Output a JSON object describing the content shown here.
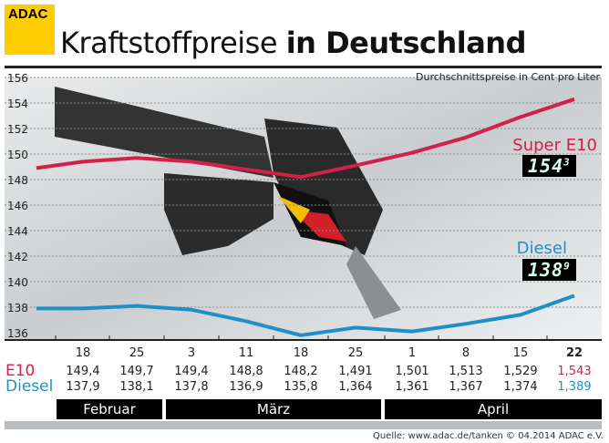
{
  "logo": "ADAC",
  "title": {
    "light": "Kraftstoffpreise",
    "bold": "in Deutschland"
  },
  "subtitle": "Durchschnittspreise in Cent pro Liter",
  "colors": {
    "e10": "#d2204a",
    "diesel": "#1e90c8",
    "logo": "#ffcc00"
  },
  "labels": {
    "e10": "Super E10",
    "diesel": "Diesel",
    "e10_display_main": "154",
    "e10_display_sup": "3",
    "diesel_display_main": "138",
    "diesel_display_sup": "9"
  },
  "table": {
    "dates": [
      "18",
      "25",
      "3",
      "11",
      "18",
      "25",
      "1",
      "8",
      "15",
      "22"
    ],
    "e10_label": "E10",
    "diesel_label": "Diesel",
    "e10": [
      "149,4",
      "149,7",
      "149,4",
      "148,8",
      "148,2",
      "1,491",
      "1,501",
      "1,513",
      "1,529",
      "1,543"
    ],
    "diesel": [
      "137,9",
      "138,1",
      "137,8",
      "136,9",
      "135,8",
      "1,364",
      "1,361",
      "1,367",
      "1,374",
      "1,389"
    ]
  },
  "months": [
    "Februar",
    "März",
    "April"
  ],
  "source": "Quelle: www.adac.de/tanken  © 04.2014  ADAC e.V.",
  "chart_data": {
    "type": "line",
    "title": "Kraftstoffpreise in Deutschland",
    "ylabel": "Durchschnittspreise in Cent pro Liter",
    "ylim": [
      136,
      156
    ],
    "yticks": [
      136,
      138,
      140,
      142,
      144,
      146,
      148,
      150,
      152,
      154,
      156
    ],
    "categories": [
      "18.02",
      "25.02",
      "3.03",
      "11.03",
      "18.03",
      "25.03",
      "1.04",
      "8.04",
      "15.04",
      "22.04"
    ],
    "series": [
      {
        "name": "Super E10",
        "values": [
          149.4,
          149.7,
          149.4,
          148.8,
          148.2,
          149.1,
          150.1,
          151.3,
          152.9,
          154.3
        ]
      },
      {
        "name": "Diesel",
        "values": [
          137.9,
          138.1,
          137.8,
          136.9,
          135.8,
          136.4,
          136.1,
          136.7,
          137.4,
          138.9
        ]
      }
    ],
    "grid": true
  }
}
